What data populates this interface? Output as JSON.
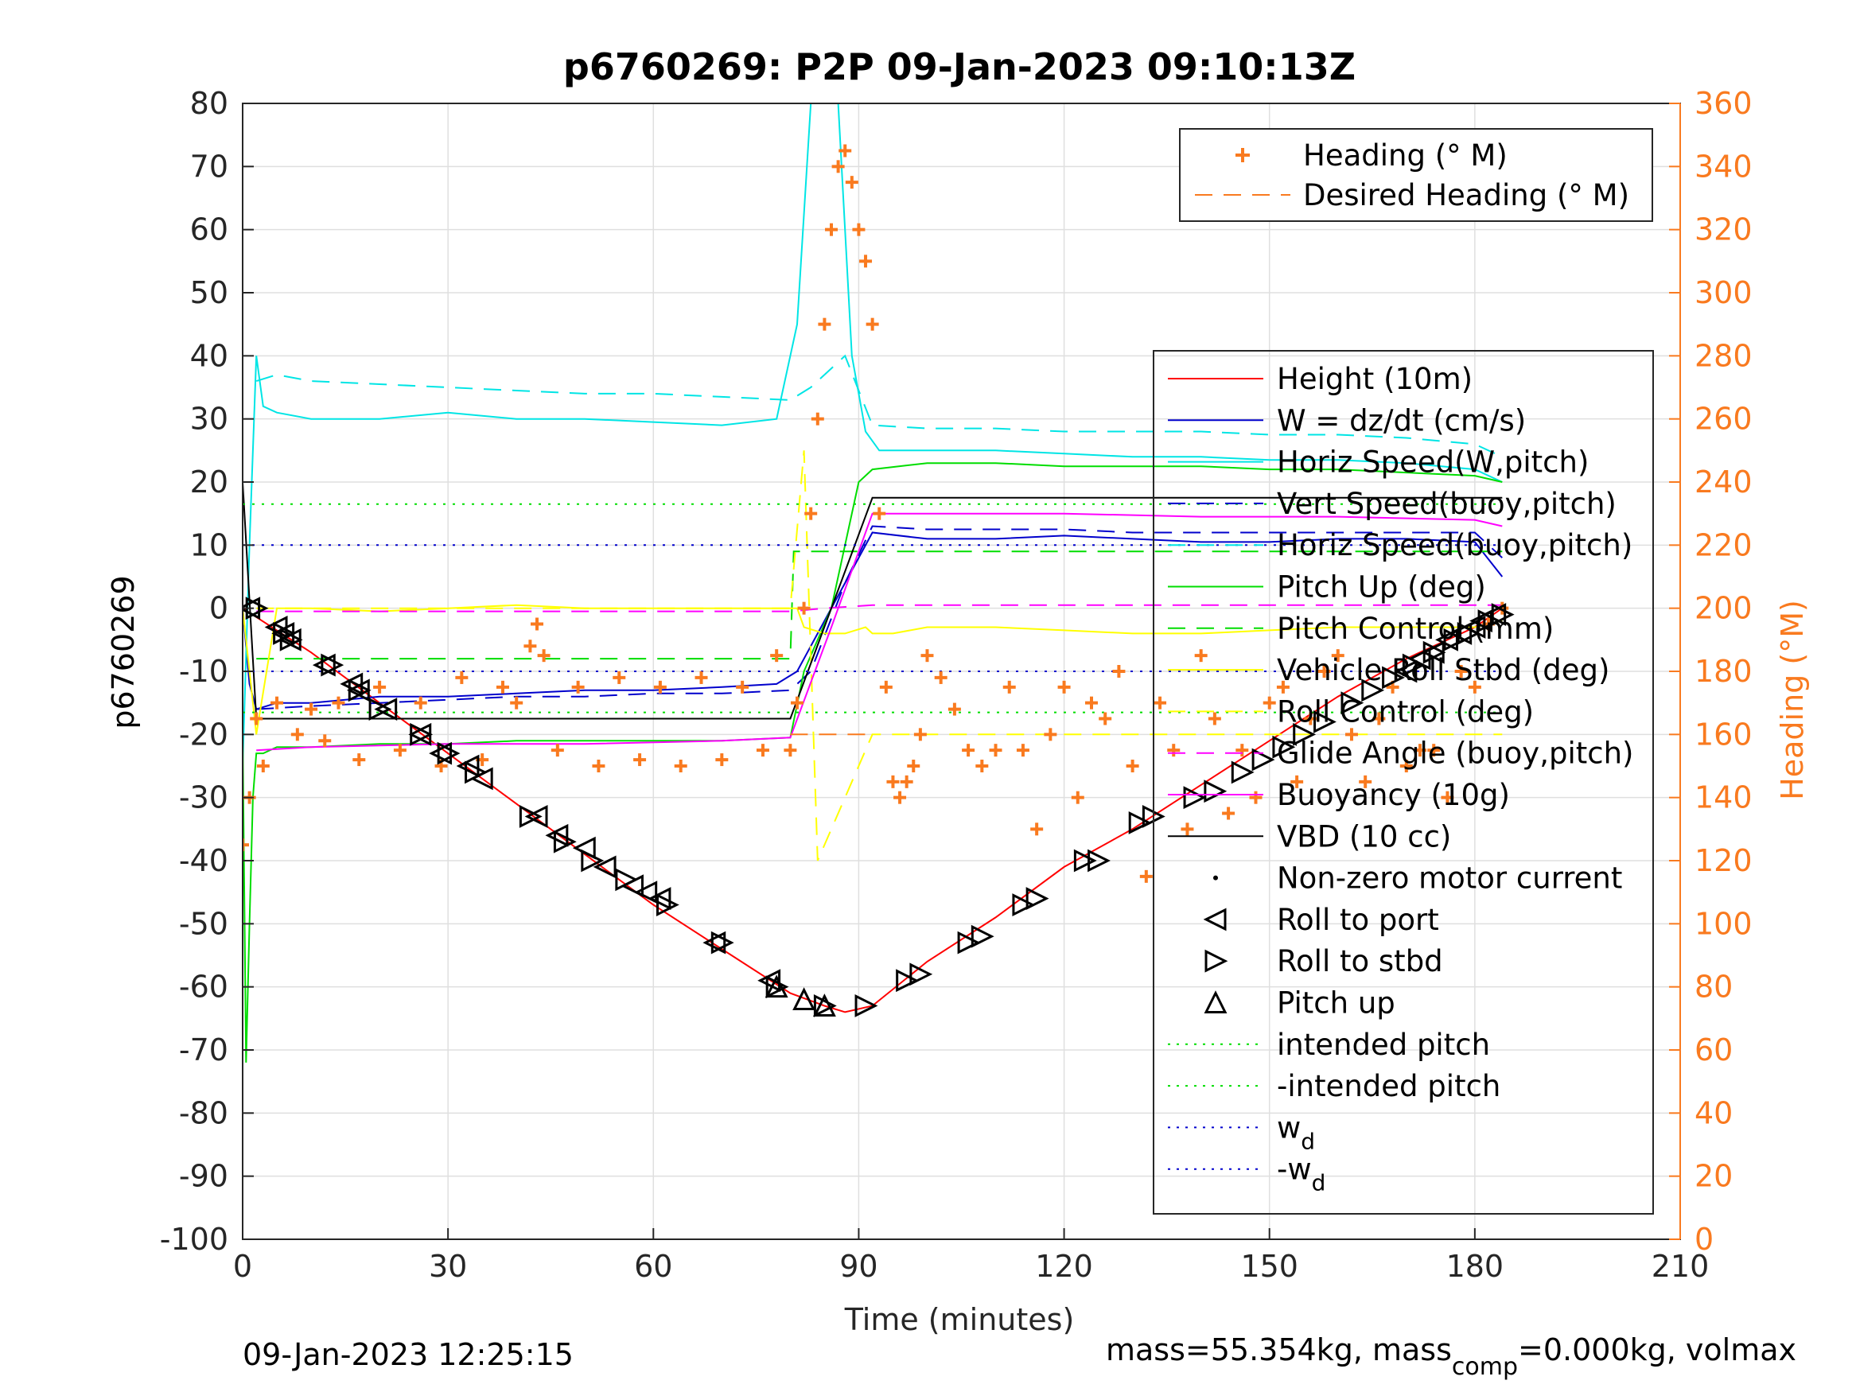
{
  "chart_data": {
    "type": "line",
    "title": "p6760269: P2P 09-Jan-2023 09:10:13Z",
    "xlabel": "Time (minutes)",
    "ylabel": "p6760269",
    "ylabel_right": "Heading (°M)",
    "xlim": [
      0,
      210
    ],
    "ylim": [
      -100,
      80
    ],
    "ylim_right": [
      0,
      360
    ],
    "x_ticks": [
      "0",
      "30",
      "60",
      "90",
      "120",
      "150",
      "180",
      "210"
    ],
    "y_ticks": [
      "-100",
      "-90",
      "-80",
      "-70",
      "-60",
      "-50",
      "-40",
      "-30",
      "-20",
      "-10",
      "0",
      "10",
      "20",
      "30",
      "40",
      "50",
      "60",
      "70",
      "80"
    ],
    "y_right_ticks": [
      "0",
      "20",
      "40",
      "60",
      "80",
      "100",
      "120",
      "140",
      "160",
      "180",
      "200",
      "220",
      "240",
      "260",
      "280",
      "300",
      "320",
      "340",
      "360"
    ],
    "grid": true,
    "footer_left": "09-Jan-2023 12:25:15",
    "footer_right_prefix": "mass=55.354kg, mass",
    "footer_right_sub": "comp",
    "footer_right_suffix": "=0.000kg, volmax",
    "legend_heading": [
      {
        "label": "Heading (° M)",
        "color": "#f97a1f",
        "marker": "plus"
      },
      {
        "label": "Desired Heading (° M)",
        "color": "#f97a1f",
        "style": "dashed"
      }
    ],
    "legend_main": [
      {
        "label": "Height (10m)",
        "color": "#ff0000",
        "style": "solid"
      },
      {
        "label": "W = dz/dt (cm/s)",
        "color": "#0000cc",
        "style": "solid"
      },
      {
        "label": "Horiz Speed(W,pitch)",
        "color": "#00e5e5",
        "style": "solid"
      },
      {
        "label": "Vert Speed(buoy,pitch)",
        "color": "#0000cc",
        "style": "dashed"
      },
      {
        "label": "Horiz Speed(buoy,pitch)",
        "color": "#00e5e5",
        "style": "dashed"
      },
      {
        "label": "Pitch Up (deg)",
        "color": "#00dd00",
        "style": "solid"
      },
      {
        "label": "Pitch Control (mm)",
        "color": "#00dd00",
        "style": "dashed"
      },
      {
        "label": "Vehicle Roll Stbd (deg)",
        "color": "#ffff00",
        "style": "solid"
      },
      {
        "label": "Roll Control (deg)",
        "color": "#ffff00",
        "style": "dashed"
      },
      {
        "label": "Glide Angle (buoy,pitch)",
        "color": "#ff00ff",
        "style": "dashed"
      },
      {
        "label": "Buoyancy (10g)",
        "color": "#ff00ff",
        "style": "solid"
      },
      {
        "label": "VBD (10 cc)",
        "color": "#000000",
        "style": "solid"
      },
      {
        "label": "Non-zero motor current",
        "color": "#000000",
        "marker": "dot"
      },
      {
        "label": "Roll to port",
        "color": "#000000",
        "marker": "tri-left"
      },
      {
        "label": "Roll to stbd",
        "color": "#000000",
        "marker": "tri-right"
      },
      {
        "label": "Pitch up",
        "color": "#000000",
        "marker": "tri-up"
      },
      {
        "label": "intended pitch",
        "color": "#00dd00",
        "style": "dotted"
      },
      {
        "label": "-intended pitch",
        "color": "#00dd00",
        "style": "dotted"
      },
      {
        "label": "w",
        "sub": "d",
        "color": "#0000cc",
        "style": "dotted"
      },
      {
        "label": "-w",
        "sub": "d",
        "color": "#0000cc",
        "style": "dotted"
      }
    ],
    "series": [
      {
        "name": "Height (10m)",
        "color": "#ff0000",
        "axis": "left",
        "x": [
          0,
          10,
          20,
          30,
          40,
          50,
          60,
          70,
          80,
          85,
          88,
          92,
          100,
          110,
          120,
          130,
          140,
          150,
          160,
          170,
          180,
          184
        ],
        "y": [
          0,
          -7,
          -15,
          -23,
          -31,
          -39,
          -47,
          -54,
          -61,
          -63,
          -64,
          -63,
          -56,
          -49,
          -41,
          -35,
          -28,
          -21,
          -14,
          -8,
          -3,
          0
        ]
      },
      {
        "name": "W = dz/dt (cm/s)",
        "color": "#0000cc",
        "axis": "left",
        "x": [
          0,
          1,
          2,
          5,
          10,
          20,
          30,
          40,
          50,
          60,
          70,
          78,
          81,
          85,
          89,
          92,
          100,
          110,
          120,
          130,
          140,
          150,
          160,
          170,
          180,
          184
        ],
        "y": [
          0,
          -12,
          -16,
          -15,
          -15,
          -14,
          -14,
          -13.5,
          -13,
          -13,
          -12.5,
          -12,
          -10,
          -2,
          6,
          12,
          11,
          11,
          11.5,
          11,
          10.5,
          10.5,
          11,
          11,
          10.5,
          5
        ]
      },
      {
        "name": "Horiz Speed(W,pitch)",
        "color": "#00e5e5",
        "axis": "left",
        "x": [
          0,
          1,
          2,
          3,
          5,
          10,
          20,
          30,
          40,
          50,
          60,
          70,
          78,
          81,
          83,
          85,
          87,
          89,
          91,
          93,
          100,
          110,
          120,
          130,
          140,
          150,
          160,
          170,
          180,
          184
        ],
        "y": [
          -25,
          10,
          40,
          32,
          31,
          30,
          30,
          31,
          30,
          30,
          29.5,
          29,
          30,
          45,
          80,
          80,
          80,
          40,
          28,
          25,
          25,
          25,
          24.5,
          24,
          24,
          23.5,
          23.5,
          23,
          22,
          20
        ]
      },
      {
        "name": "Vert Speed(buoy,pitch)",
        "color": "#0000cc",
        "axis": "left",
        "dashed": true,
        "x": [
          2,
          10,
          20,
          30,
          40,
          50,
          60,
          70,
          80,
          83,
          88,
          92,
          100,
          110,
          120,
          130,
          140,
          150,
          160,
          170,
          180,
          184
        ],
        "y": [
          -16,
          -15.5,
          -15,
          -14.5,
          -14,
          -14,
          -13.5,
          -13.5,
          -13,
          -10,
          4,
          13,
          12.5,
          12.5,
          12.5,
          12,
          12,
          12,
          12,
          12,
          12,
          8
        ]
      },
      {
        "name": "Horiz Speed(buoy,pitch)",
        "color": "#00e5e5",
        "axis": "left",
        "dashed": true,
        "x": [
          2,
          5,
          10,
          20,
          30,
          40,
          50,
          60,
          70,
          80,
          83,
          88,
          92,
          100,
          110,
          120,
          130,
          140,
          150,
          160,
          170,
          180,
          184
        ],
        "y": [
          36,
          37,
          36,
          35.5,
          35,
          34.5,
          34,
          34,
          33.5,
          33,
          35,
          40,
          29,
          28.5,
          28.5,
          28,
          28,
          28,
          27.5,
          27.5,
          27,
          26,
          24
        ]
      },
      {
        "name": "Pitch Up (deg)",
        "color": "#00dd00",
        "axis": "left",
        "x": [
          0,
          0.5,
          1,
          1.5,
          2,
          3,
          5,
          10,
          20,
          30,
          40,
          50,
          60,
          70,
          80,
          82,
          84,
          86,
          88,
          90,
          92,
          100,
          110,
          120,
          130,
          140,
          150,
          160,
          170,
          180,
          184
        ],
        "y": [
          -20,
          -72,
          -50,
          -30,
          -23,
          -23,
          -22,
          -22,
          -21.5,
          -21.5,
          -21,
          -21,
          -21,
          -21,
          -20.5,
          -10,
          -5,
          0,
          10,
          20,
          22,
          23,
          23,
          22.5,
          22.5,
          22.5,
          22,
          22,
          21.5,
          21,
          20
        ]
      },
      {
        "name": "Pitch Control (mm)",
        "color": "#00dd00",
        "axis": "left",
        "dashed": true,
        "x": [
          2,
          80,
          80.5,
          92,
          92.5,
          184
        ],
        "y": [
          -8,
          -8,
          9,
          9,
          9,
          9
        ]
      },
      {
        "name": "Vehicle Roll Stbd (deg)",
        "color": "#ffff00",
        "axis": "left",
        "x": [
          0,
          2,
          5,
          10,
          20,
          30,
          40,
          50,
          60,
          70,
          80,
          81,
          82,
          85,
          88,
          91,
          92,
          95,
          100,
          110,
          120,
          130,
          140,
          150,
          160,
          170,
          180,
          184
        ],
        "y": [
          0,
          -20,
          0,
          0,
          -0.5,
          0,
          0.5,
          0,
          0,
          0,
          0,
          0,
          -3,
          -4,
          -4,
          -3,
          -4,
          -4,
          -3,
          -3,
          -3.5,
          -4,
          -4,
          -3.5,
          -3,
          -3,
          -3,
          -2
        ]
      },
      {
        "name": "Roll Control (deg)",
        "color": "#ffff00",
        "axis": "left",
        "dashed": true,
        "x": [
          2,
          30,
          60,
          80,
          82,
          84,
          92,
          100,
          130,
          160,
          184
        ],
        "y": [
          0,
          0,
          0,
          0,
          25,
          -40,
          -20,
          -20,
          -20,
          -20,
          -20
        ]
      },
      {
        "name": "Glide Angle (buoy,pitch)",
        "color": "#ff00ff",
        "axis": "left",
        "dashed": true,
        "x": [
          2,
          40,
          80,
          85,
          92,
          130,
          184
        ],
        "y": [
          -0.5,
          -0.5,
          -0.5,
          0,
          0.5,
          0.5,
          0.5
        ]
      },
      {
        "name": "Buoyancy (10g)",
        "color": "#ff00ff",
        "axis": "left",
        "x": [
          2,
          10,
          30,
          50,
          70,
          80,
          86,
          92,
          100,
          120,
          140,
          160,
          180,
          184
        ],
        "y": [
          -22.5,
          -22,
          -21.5,
          -21.5,
          -21,
          -20.5,
          -3,
          15,
          15,
          15,
          14.5,
          14.5,
          14,
          13
        ]
      },
      {
        "name": "VBD (10 cc)",
        "color": "#000000",
        "axis": "left",
        "x": [
          0,
          2,
          80,
          86,
          92,
          100,
          140,
          184
        ],
        "y": [
          20,
          -17.5,
          -17.5,
          0,
          17.5,
          17.5,
          17.5,
          17.5
        ]
      },
      {
        "name": "intended pitch",
        "color": "#00dd00",
        "axis": "left",
        "dotted": true,
        "x": [
          0,
          184
        ],
        "y": [
          16.5,
          16.5
        ]
      },
      {
        "name": "-intended pitch",
        "color": "#00dd00",
        "axis": "left",
        "dotted": true,
        "x": [
          0,
          184
        ],
        "y": [
          -16.5,
          -16.5
        ]
      },
      {
        "name": "w_d",
        "color": "#0000cc",
        "axis": "left",
        "dotted": true,
        "x": [
          0,
          184
        ],
        "y": [
          10,
          10
        ]
      },
      {
        "name": "-w_d",
        "color": "#0000cc",
        "axis": "left",
        "dotted": true,
        "x": [
          0,
          184
        ],
        "y": [
          -10,
          -10
        ]
      },
      {
        "name": "Desired Heading (° M)",
        "color": "#f97a1f",
        "axis": "right",
        "dashed": true,
        "x": [
          80,
          92
        ],
        "y": [
          160,
          160
        ]
      }
    ],
    "heading": {
      "name": "Heading (° M)",
      "color": "#f97a1f",
      "axis": "right",
      "x": [
        0,
        1,
        2,
        3,
        5,
        8,
        10,
        12,
        14,
        17,
        20,
        23,
        26,
        29,
        32,
        35,
        38,
        40,
        42,
        43,
        44,
        46,
        49,
        52,
        55,
        58,
        61,
        64,
        67,
        70,
        73,
        76,
        78,
        80,
        81,
        82,
        83,
        84,
        85,
        86,
        87,
        88,
        89,
        90,
        91,
        92,
        93,
        94,
        95,
        96,
        97,
        98,
        99,
        100,
        102,
        104,
        106,
        108,
        110,
        112,
        114,
        116,
        118,
        120,
        122,
        124,
        126,
        128,
        130,
        132,
        134,
        136,
        138,
        140,
        142,
        144,
        146,
        148,
        150,
        152,
        154,
        156,
        158,
        160,
        162,
        164,
        166,
        168,
        170,
        172,
        174,
        176,
        178,
        180,
        182,
        184
      ],
      "y": [
        125,
        140,
        165,
        150,
        170,
        160,
        168,
        158,
        170,
        152,
        175,
        155,
        170,
        150,
        178,
        152,
        175,
        170,
        188,
        195,
        185,
        155,
        175,
        150,
        178,
        152,
        175,
        150,
        178,
        152,
        175,
        155,
        185,
        155,
        170,
        200,
        230,
        260,
        290,
        320,
        340,
        345,
        335,
        320,
        310,
        290,
        230,
        175,
        145,
        140,
        145,
        150,
        160,
        185,
        178,
        168,
        155,
        150,
        155,
        175,
        155,
        130,
        160,
        175,
        140,
        170,
        165,
        180,
        150,
        115,
        170,
        155,
        130,
        185,
        165,
        135,
        155,
        140,
        170,
        175,
        145,
        165,
        180,
        185,
        160,
        145,
        165,
        175,
        150,
        155,
        155,
        140,
        180,
        175,
        195,
        200
      ]
    },
    "roll_port": {
      "x": [
        1,
        5,
        6,
        7,
        12,
        16,
        17,
        21,
        26,
        29,
        33,
        35,
        43,
        46,
        50,
        53,
        57,
        59,
        61,
        69,
        77,
        170,
        172,
        174,
        176,
        178,
        180,
        181,
        183
      ],
      "y": [
        0,
        -3,
        -4,
        -5,
        -9,
        -12,
        -13,
        -16,
        -20,
        -23,
        -25,
        -27,
        -33,
        -36,
        -38,
        -41,
        -44,
        -45,
        -46,
        -53,
        -59,
        -10,
        -8,
        -7,
        -5,
        -4,
        -3,
        -2,
        -1
      ]
    },
    "roll_stbd": {
      "x": [
        2,
        6,
        7,
        13,
        17,
        20,
        26,
        30,
        34,
        42,
        47,
        51,
        56,
        62,
        70,
        78,
        85,
        91,
        97,
        99,
        106,
        108,
        114,
        116,
        123,
        125,
        131,
        133,
        139,
        142,
        146,
        149,
        152,
        155,
        158,
        162,
        165,
        168,
        171,
        174,
        177,
        179,
        182,
        184
      ],
      "y": [
        0,
        -4,
        -5,
        -9,
        -13,
        -16,
        -20,
        -23,
        -26,
        -33,
        -37,
        -40,
        -43,
        -47,
        -53,
        -60,
        -63,
        -63,
        -59,
        -58,
        -53,
        -52,
        -47,
        -46,
        -40,
        -40,
        -34,
        -33,
        -30,
        -29,
        -26,
        -24,
        -22,
        -20,
        -18,
        -15,
        -13,
        -11,
        -9,
        -7,
        -5,
        -4,
        -2,
        -1
      ]
    },
    "pitch_up": {
      "x": [
        78,
        82,
        85
      ],
      "y": [
        -60,
        -62,
        -63
      ]
    }
  }
}
